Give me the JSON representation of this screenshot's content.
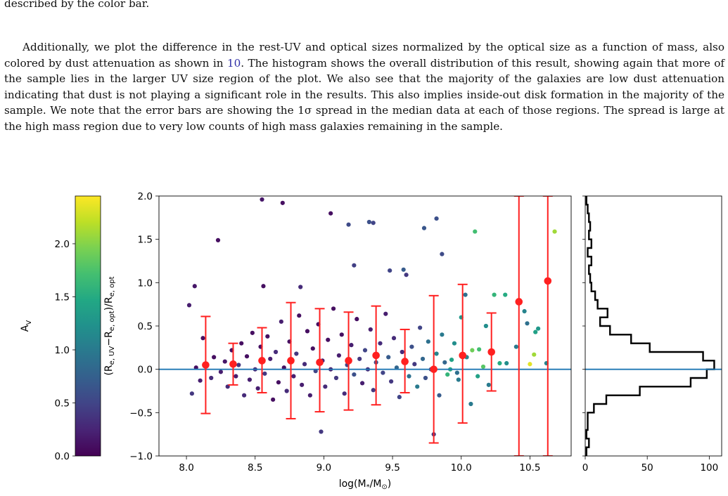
{
  "text": {
    "fragment": "described by the color bar.",
    "paragraph": {
      "before": "Additionally, we plot the difference in the rest-UV and optical sizes normalized by the optical size as a function of mass, also colored by dust attenuation as shown in ",
      "ref": "10",
      "after": ". The histogram shows the overall distribution of this result, showing again that more of the sample lies in the larger UV size region of the plot. We also see that the majority of the galaxies are low dust attenuation indicating that dust is not playing a significant role in the results. This also implies inside-out disk formation in the majority of the sample. We note that the error bars are showing the 1σ spread in the median data at each of those regions. The spread is large at the high mass region due to very low counts of high mass galaxies remaining in the sample."
    }
  },
  "colors": {
    "median": "#ff2020",
    "zero_line": "#1f77b4",
    "histogram": "#000000"
  },
  "chart_data": [
    {
      "type": "colorbar",
      "label": "A_V",
      "range": [
        0.0,
        2.45
      ],
      "ticks": [
        "0.0",
        "0.5",
        "1.0",
        "1.5",
        "2.0"
      ],
      "tick_values": [
        0.0,
        0.5,
        1.0,
        1.5,
        2.0
      ],
      "colormap": "viridis"
    },
    {
      "type": "scatter",
      "xlabel": "log(M*/M⊙)",
      "ylabel": "(Re,UV−Re,opt)/Re,opt",
      "xlim": [
        7.8,
        10.8
      ],
      "ylim": [
        -1.0,
        2.0
      ],
      "xticks": [
        "8.0",
        "8.5",
        "9.0",
        "9.5",
        "10.0",
        "10.5"
      ],
      "xtick_values": [
        8.0,
        8.5,
        9.0,
        9.5,
        10.0,
        10.5
      ],
      "yticks": [
        "−1.0",
        "−0.5",
        "0.0",
        "0.5",
        "1.0",
        "1.5",
        "2.0"
      ],
      "ytick_values": [
        -1.0,
        -0.5,
        0.0,
        0.5,
        1.0,
        1.5,
        2.0
      ],
      "reference_line_y": 0.0,
      "median_points": [
        {
          "x": 8.14,
          "y": 0.05,
          "err_low": -0.51,
          "err_high": 0.61
        },
        {
          "x": 8.34,
          "y": 0.06,
          "err_low": -0.18,
          "err_high": 0.3
        },
        {
          "x": 8.55,
          "y": 0.1,
          "err_low": -0.27,
          "err_high": 0.48
        },
        {
          "x": 8.76,
          "y": 0.1,
          "err_low": -0.57,
          "err_high": 0.77
        },
        {
          "x": 8.97,
          "y": 0.08,
          "err_low": -0.49,
          "err_high": 0.7
        },
        {
          "x": 9.18,
          "y": 0.1,
          "err_low": -0.47,
          "err_high": 0.66
        },
        {
          "x": 9.38,
          "y": 0.16,
          "err_low": -0.41,
          "err_high": 0.73
        },
        {
          "x": 9.59,
          "y": 0.09,
          "err_low": -0.27,
          "err_high": 0.46
        },
        {
          "x": 9.8,
          "y": 0.0,
          "err_low": -0.85,
          "err_high": 0.85
        },
        {
          "x": 10.01,
          "y": 0.16,
          "err_low": -0.62,
          "err_high": 0.98
        },
        {
          "x": 10.22,
          "y": 0.2,
          "err_low": -0.25,
          "err_high": 0.65
        },
        {
          "x": 10.42,
          "y": 0.78,
          "err_low": -1.0,
          "err_high": 2.0
        },
        {
          "x": 10.63,
          "y": 1.02,
          "err_low": -1.0,
          "err_high": 2.0
        }
      ],
      "points": [
        {
          "x": 8.23,
          "y": 1.49,
          "av": 0.1
        },
        {
          "x": 8.55,
          "y": 1.96,
          "av": 0.15
        },
        {
          "x": 8.7,
          "y": 1.92,
          "av": 0.1
        },
        {
          "x": 9.05,
          "y": 1.8,
          "av": 0.1
        },
        {
          "x": 9.18,
          "y": 1.67,
          "av": 0.55
        },
        {
          "x": 9.33,
          "y": 1.7,
          "av": 0.6
        },
        {
          "x": 9.36,
          "y": 1.69,
          "av": 0.5
        },
        {
          "x": 9.73,
          "y": 1.63,
          "av": 0.65
        },
        {
          "x": 9.82,
          "y": 1.74,
          "av": 0.6
        },
        {
          "x": 10.1,
          "y": 1.59,
          "av": 1.7
        },
        {
          "x": 10.68,
          "y": 1.59,
          "av": 2.1
        },
        {
          "x": 8.06,
          "y": 0.96,
          "av": 0.15
        },
        {
          "x": 8.02,
          "y": 0.74,
          "av": 0.2
        },
        {
          "x": 8.56,
          "y": 0.96,
          "av": 0.1
        },
        {
          "x": 8.83,
          "y": 0.95,
          "av": 0.3
        },
        {
          "x": 9.48,
          "y": 1.14,
          "av": 0.5
        },
        {
          "x": 9.58,
          "y": 1.15,
          "av": 0.7
        },
        {
          "x": 9.6,
          "y": 1.09,
          "av": 0.4
        },
        {
          "x": 9.86,
          "y": 1.33,
          "av": 0.55
        },
        {
          "x": 9.22,
          "y": 1.2,
          "av": 0.45
        },
        {
          "x": 10.03,
          "y": 0.86,
          "av": 0.9
        },
        {
          "x": 10.24,
          "y": 0.86,
          "av": 1.6
        },
        {
          "x": 10.32,
          "y": 0.86,
          "av": 1.5
        },
        {
          "x": 10.46,
          "y": 0.67,
          "av": 1.1
        },
        {
          "x": 10.4,
          "y": 0.26,
          "av": 1.0
        },
        {
          "x": 10.48,
          "y": 0.53,
          "av": 0.9
        },
        {
          "x": 10.54,
          "y": 0.43,
          "av": 1.4
        },
        {
          "x": 10.56,
          "y": 0.47,
          "av": 1.3
        },
        {
          "x": 10.53,
          "y": 0.17,
          "av": 2.1
        },
        {
          "x": 10.5,
          "y": 0.06,
          "av": 2.35
        },
        {
          "x": 10.62,
          "y": 0.07,
          "av": 1.1
        },
        {
          "x": 10.08,
          "y": 0.22,
          "av": 1.9
        },
        {
          "x": 10.13,
          "y": 0.23,
          "av": 1.7
        },
        {
          "x": 10.16,
          "y": 0.03,
          "av": 1.8
        },
        {
          "x": 10.28,
          "y": 0.07,
          "av": 1.5
        },
        {
          "x": 10.33,
          "y": 0.07,
          "av": 1.2
        },
        {
          "x": 10.07,
          "y": -0.4,
          "av": 1.0
        },
        {
          "x": 9.9,
          "y": -0.06,
          "av": 1.6
        },
        {
          "x": 9.92,
          "y": 0.0,
          "av": 1.5
        },
        {
          "x": 9.93,
          "y": 0.11,
          "av": 1.4
        },
        {
          "x": 9.98,
          "y": -0.12,
          "av": 1.0
        },
        {
          "x": 9.8,
          "y": -0.75,
          "av": 0.4
        },
        {
          "x": 8.98,
          "y": -0.72,
          "av": 0.4
        },
        {
          "x": 8.04,
          "y": -0.28,
          "av": 0.4
        },
        {
          "x": 8.07,
          "y": 0.02,
          "av": 0.1
        },
        {
          "x": 8.1,
          "y": -0.13,
          "av": 0.2
        },
        {
          "x": 8.12,
          "y": 0.36,
          "av": 0.1
        },
        {
          "x": 8.18,
          "y": -0.1,
          "av": 0.3
        },
        {
          "x": 8.2,
          "y": 0.14,
          "av": 0.1
        },
        {
          "x": 8.25,
          "y": -0.03,
          "av": 0.2
        },
        {
          "x": 8.28,
          "y": 0.09,
          "av": 0.15
        },
        {
          "x": 8.3,
          "y": -0.2,
          "av": 0.3
        },
        {
          "x": 8.33,
          "y": 0.22,
          "av": 0.1
        },
        {
          "x": 8.36,
          "y": -0.08,
          "av": 0.2
        },
        {
          "x": 8.38,
          "y": 0.05,
          "av": 0.4
        },
        {
          "x": 8.4,
          "y": 0.3,
          "av": 0.1
        },
        {
          "x": 8.42,
          "y": -0.3,
          "av": 0.3
        },
        {
          "x": 8.44,
          "y": 0.15,
          "av": 0.1
        },
        {
          "x": 8.46,
          "y": -0.12,
          "av": 0.2
        },
        {
          "x": 8.48,
          "y": 0.42,
          "av": 0.1
        },
        {
          "x": 8.5,
          "y": 0.0,
          "av": 0.3
        },
        {
          "x": 8.52,
          "y": -0.22,
          "av": 0.2
        },
        {
          "x": 8.54,
          "y": 0.26,
          "av": 0.1
        },
        {
          "x": 8.57,
          "y": -0.05,
          "av": 0.4
        },
        {
          "x": 8.59,
          "y": 0.38,
          "av": 0.1
        },
        {
          "x": 8.61,
          "y": 0.12,
          "av": 0.2
        },
        {
          "x": 8.63,
          "y": -0.35,
          "av": 0.1
        },
        {
          "x": 8.65,
          "y": 0.2,
          "av": 0.3
        },
        {
          "x": 8.67,
          "y": -0.15,
          "av": 0.1
        },
        {
          "x": 8.69,
          "y": 0.55,
          "av": 0.2
        },
        {
          "x": 8.71,
          "y": 0.02,
          "av": 0.1
        },
        {
          "x": 8.73,
          "y": -0.25,
          "av": 0.3
        },
        {
          "x": 8.75,
          "y": 0.32,
          "av": 0.1
        },
        {
          "x": 8.78,
          "y": -0.08,
          "av": 0.2
        },
        {
          "x": 8.8,
          "y": 0.18,
          "av": 0.4
        },
        {
          "x": 8.82,
          "y": 0.62,
          "av": 0.1
        },
        {
          "x": 8.84,
          "y": -0.18,
          "av": 0.2
        },
        {
          "x": 8.86,
          "y": 0.06,
          "av": 0.3
        },
        {
          "x": 8.88,
          "y": 0.44,
          "av": 0.1
        },
        {
          "x": 8.9,
          "y": -0.3,
          "av": 0.2
        },
        {
          "x": 8.92,
          "y": 0.24,
          "av": 0.1
        },
        {
          "x": 8.94,
          "y": -0.02,
          "av": 0.5
        },
        {
          "x": 8.96,
          "y": 0.52,
          "av": 0.1
        },
        {
          "x": 8.99,
          "y": 0.1,
          "av": 0.2
        },
        {
          "x": 9.01,
          "y": -0.2,
          "av": 0.3
        },
        {
          "x": 9.03,
          "y": 0.34,
          "av": 0.1
        },
        {
          "x": 9.05,
          "y": 0.0,
          "av": 0.2
        },
        {
          "x": 9.07,
          "y": 0.7,
          "av": 0.1
        },
        {
          "x": 9.09,
          "y": -0.1,
          "av": 0.4
        },
        {
          "x": 9.11,
          "y": 0.16,
          "av": 0.2
        },
        {
          "x": 9.13,
          "y": 0.4,
          "av": 0.1
        },
        {
          "x": 9.15,
          "y": -0.28,
          "av": 0.3
        },
        {
          "x": 9.17,
          "y": 0.05,
          "av": 0.5
        },
        {
          "x": 9.2,
          "y": 0.28,
          "av": 0.2
        },
        {
          "x": 9.22,
          "y": -0.06,
          "av": 0.6
        },
        {
          "x": 9.24,
          "y": 0.58,
          "av": 0.1
        },
        {
          "x": 9.26,
          "y": 0.12,
          "av": 0.4
        },
        {
          "x": 9.28,
          "y": -0.16,
          "av": 0.2
        },
        {
          "x": 9.3,
          "y": 0.22,
          "av": 0.5
        },
        {
          "x": 9.32,
          "y": 0.0,
          "av": 0.3
        },
        {
          "x": 9.34,
          "y": 0.46,
          "av": 0.2
        },
        {
          "x": 9.36,
          "y": -0.24,
          "av": 0.4
        },
        {
          "x": 9.38,
          "y": 0.08,
          "av": 0.6
        },
        {
          "x": 9.41,
          "y": 0.3,
          "av": 0.3
        },
        {
          "x": 9.43,
          "y": -0.04,
          "av": 0.5
        },
        {
          "x": 9.45,
          "y": 0.64,
          "av": 0.2
        },
        {
          "x": 9.47,
          "y": 0.14,
          "av": 0.7
        },
        {
          "x": 9.49,
          "y": -0.14,
          "av": 0.4
        },
        {
          "x": 9.51,
          "y": 0.36,
          "av": 0.3
        },
        {
          "x": 9.53,
          "y": 0.02,
          "av": 0.8
        },
        {
          "x": 9.55,
          "y": -0.32,
          "av": 0.5
        },
        {
          "x": 9.57,
          "y": 0.2,
          "av": 0.3
        },
        {
          "x": 9.62,
          "y": -0.08,
          "av": 0.9
        },
        {
          "x": 9.64,
          "y": 0.26,
          "av": 0.6
        },
        {
          "x": 9.66,
          "y": 0.06,
          "av": 0.4
        },
        {
          "x": 9.68,
          "y": -0.2,
          "av": 1.0
        },
        {
          "x": 9.7,
          "y": 0.48,
          "av": 0.5
        },
        {
          "x": 9.72,
          "y": 0.12,
          "av": 0.8
        },
        {
          "x": 9.74,
          "y": -0.1,
          "av": 0.6
        },
        {
          "x": 9.76,
          "y": 0.32,
          "av": 0.9
        },
        {
          "x": 9.78,
          "y": 0.0,
          "av": 0.5
        },
        {
          "x": 9.82,
          "y": 0.18,
          "av": 1.1
        },
        {
          "x": 9.84,
          "y": -0.3,
          "av": 0.7
        },
        {
          "x": 9.86,
          "y": 0.4,
          "av": 1.0
        },
        {
          "x": 9.88,
          "y": 0.08,
          "av": 0.8
        },
        {
          "x": 9.95,
          "y": 0.3,
          "av": 1.2
        },
        {
          "x": 9.97,
          "y": -0.04,
          "av": 0.9
        },
        {
          "x": 10.0,
          "y": 0.6,
          "av": 1.3
        },
        {
          "x": 10.04,
          "y": 0.14,
          "av": 1.1
        },
        {
          "x": 10.12,
          "y": -0.08,
          "av": 1.4
        },
        {
          "x": 10.18,
          "y": 0.5,
          "av": 1.2
        },
        {
          "x": 10.2,
          "y": -0.18,
          "av": 1.0
        }
      ]
    },
    {
      "type": "histogram",
      "orientation": "horizontal",
      "xlim": [
        0,
        110
      ],
      "xticks": [
        "0",
        "50",
        "100"
      ],
      "xtick_values": [
        0,
        50,
        100
      ],
      "bin_edges": [
        -1.0,
        -0.9,
        -0.8,
        -0.7,
        -0.6,
        -0.5,
        -0.4,
        -0.3,
        -0.2,
        -0.1,
        0.0,
        0.1,
        0.2,
        0.3,
        0.4,
        0.5,
        0.6,
        0.7,
        0.8,
        0.9,
        1.0,
        1.1,
        1.2,
        1.3,
        1.4,
        1.5,
        1.6,
        1.7,
        1.8,
        1.9,
        2.0
      ],
      "counts": [
        1,
        3,
        1,
        2,
        2,
        7,
        17,
        44,
        85,
        98,
        104,
        95,
        52,
        37,
        20,
        12,
        18,
        10,
        8,
        5,
        4,
        3,
        5,
        2,
        5,
        3,
        4,
        3,
        2,
        1
      ]
    }
  ]
}
